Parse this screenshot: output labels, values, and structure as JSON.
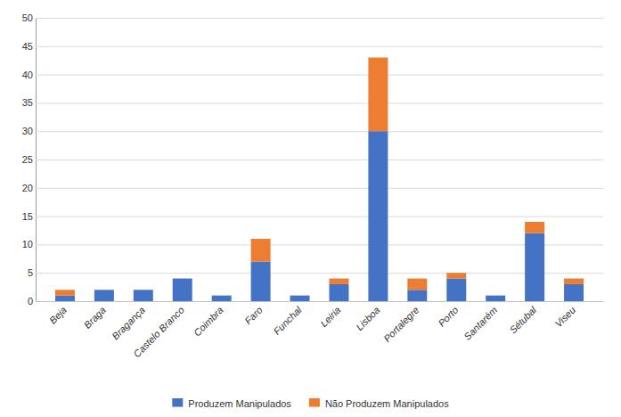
{
  "chart_data": {
    "type": "bar",
    "stacked": true,
    "categories": [
      "Beja",
      "Braga",
      "Bragança",
      "Castelo Branco",
      "Coimbra",
      "Faro",
      "Funchal",
      "Leiria",
      "Lisboa",
      "Portalegre",
      "Porto",
      "Santarém",
      "Sétubal",
      "Viseu"
    ],
    "series": [
      {
        "name": "Produzem Manipulados",
        "color": "#4472C4",
        "values": [
          1,
          2,
          2,
          4,
          1,
          7,
          1,
          3,
          30,
          2,
          4,
          1,
          12,
          3
        ]
      },
      {
        "name": "Não Produzem Manipulados",
        "color": "#ED7D31",
        "values": [
          1,
          0,
          0,
          0,
          0,
          4,
          0,
          1,
          13,
          2,
          1,
          0,
          2,
          1
        ]
      }
    ],
    "ylim": [
      0,
      50
    ],
    "yticks": [
      0,
      5,
      10,
      15,
      20,
      25,
      30,
      35,
      40,
      45,
      50
    ],
    "grid": true,
    "legend": "bottom"
  }
}
